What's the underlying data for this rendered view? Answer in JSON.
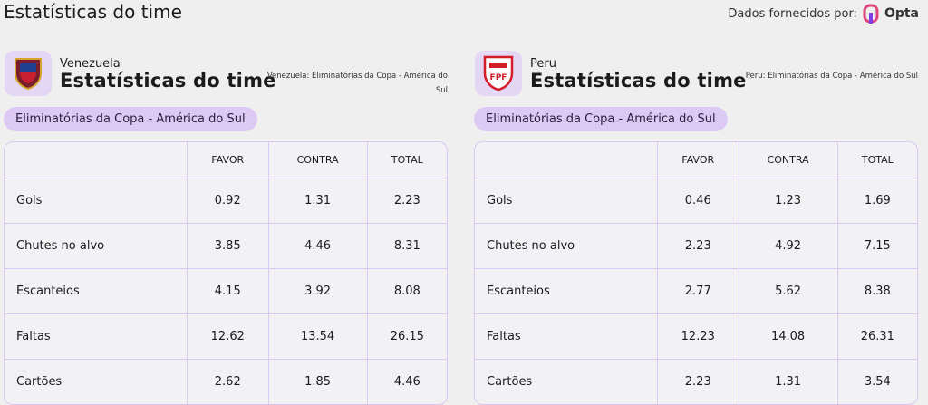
{
  "header": {
    "title": "Estatísticas do time",
    "provider_label": "Dados fornecidos por:",
    "provider_name": "Opta"
  },
  "panels": [
    {
      "team": "Venezuela",
      "subtitle": "Estatísticas do time",
      "note": "Venezuela: Eliminatórias da Copa - América do Sul",
      "competition": "Eliminatórias da Copa - América do Sul",
      "table": {
        "columns": [
          "FAVOR",
          "CONTRA",
          "TOTAL"
        ],
        "rows": [
          {
            "label": "Gols",
            "values": [
              0.92,
              1.31,
              2.23
            ]
          },
          {
            "label": "Chutes no alvo",
            "values": [
              3.85,
              4.46,
              8.31
            ]
          },
          {
            "label": "Escanteios",
            "values": [
              4.15,
              3.92,
              8.08
            ]
          },
          {
            "label": "Faltas",
            "values": [
              12.62,
              13.54,
              26.15
            ]
          },
          {
            "label": "Cartões",
            "values": [
              2.62,
              1.85,
              4.46
            ]
          }
        ]
      }
    },
    {
      "team": "Peru",
      "subtitle": "Estatísticas do time",
      "note": "Peru: Eliminatórias da Copa - América do Sul",
      "competition": "Eliminatórias da Copa - América do Sul",
      "table": {
        "columns": [
          "FAVOR",
          "CONTRA",
          "TOTAL"
        ],
        "rows": [
          {
            "label": "Gols",
            "values": [
              0.46,
              1.23,
              1.69
            ]
          },
          {
            "label": "Chutes no alvo",
            "values": [
              2.23,
              4.92,
              7.15
            ]
          },
          {
            "label": "Escanteios",
            "values": [
              2.77,
              5.62,
              8.38
            ]
          },
          {
            "label": "Faltas",
            "values": [
              12.23,
              14.08,
              26.31
            ]
          },
          {
            "label": "Cartões",
            "values": [
              2.23,
              1.31,
              3.54
            ]
          }
        ]
      }
    }
  ]
}
